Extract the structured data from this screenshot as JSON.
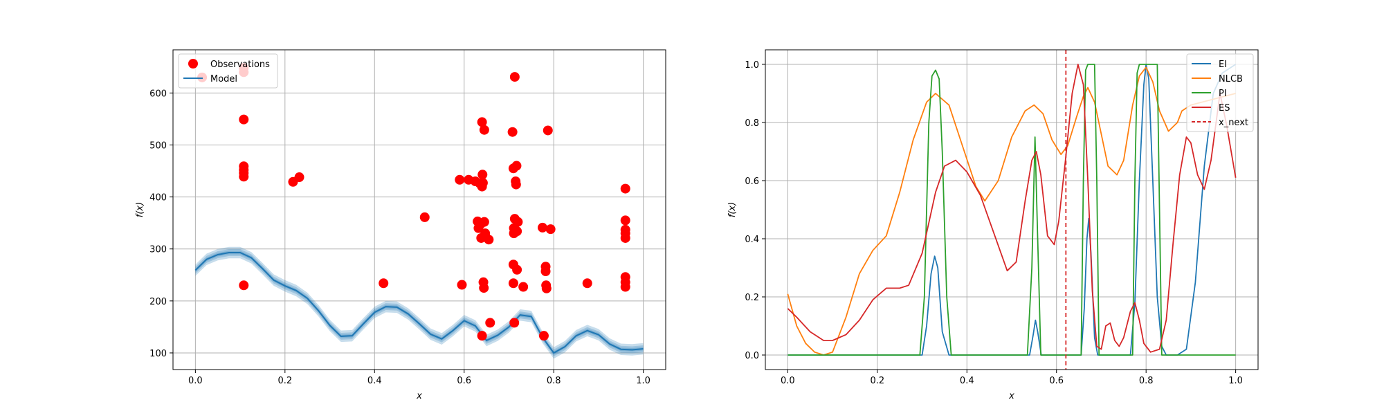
{
  "colors": {
    "observations": "#ff0000",
    "model": "#1f77b4",
    "ei": "#1f77b4",
    "nlcb": "#ff7f0e",
    "pi": "#2ca02c",
    "es": "#d62728",
    "x_next": "#d62728",
    "grid": "#b0b0b0"
  },
  "chart_data": [
    {
      "type": "scatter",
      "title": "",
      "xlabel": "x",
      "ylabel": "f(x)",
      "xlim": [
        -0.05,
        1.05
      ],
      "ylim": [
        68,
        683
      ],
      "xticks": [
        0.0,
        0.2,
        0.4,
        0.6,
        0.8,
        1.0
      ],
      "xtick_labels": [
        "0.0",
        "0.2",
        "0.4",
        "0.6",
        "0.8",
        "1.0"
      ],
      "yticks": [
        100,
        200,
        300,
        400,
        500,
        600
      ],
      "ytick_labels": [
        "100",
        "200",
        "300",
        "400",
        "500",
        "600"
      ],
      "grid": true,
      "legend_position": "top-left",
      "legend": [
        "Observations",
        "Model"
      ],
      "series": [
        {
          "name": "Observations",
          "type": "scatter",
          "points": [
            [
              0.015,
              630
            ],
            [
              0.108,
              648
            ],
            [
              0.108,
              640
            ],
            [
              0.108,
              549
            ],
            [
              0.108,
              459
            ],
            [
              0.108,
              452
            ],
            [
              0.108,
              446
            ],
            [
              0.108,
              439
            ],
            [
              0.108,
              230
            ],
            [
              0.218,
              429
            ],
            [
              0.232,
              438
            ],
            [
              0.42,
              234
            ],
            [
              0.512,
              361
            ],
            [
              0.59,
              433
            ],
            [
              0.595,
              231
            ],
            [
              0.61,
              433
            ],
            [
              0.625,
              430
            ],
            [
              0.63,
              353
            ],
            [
              0.632,
              340
            ],
            [
              0.635,
              426
            ],
            [
              0.637,
              348
            ],
            [
              0.638,
              321
            ],
            [
              0.64,
              544
            ],
            [
              0.64,
              420
            ],
            [
              0.641,
              443
            ],
            [
              0.642,
              427
            ],
            [
              0.643,
              236
            ],
            [
              0.644,
              225
            ],
            [
              0.645,
              529
            ],
            [
              0.645,
              352
            ],
            [
              0.647,
              330
            ],
            [
              0.648,
              323
            ],
            [
              0.655,
              318
            ],
            [
              0.658,
              158
            ],
            [
              0.64,
              133
            ],
            [
              0.708,
              525
            ],
            [
              0.71,
              455
            ],
            [
              0.71,
              270
            ],
            [
              0.71,
              234
            ],
            [
              0.711,
              340
            ],
            [
              0.711,
              330
            ],
            [
              0.712,
              158
            ],
            [
              0.713,
              631
            ],
            [
              0.713,
              358
            ],
            [
              0.715,
              430
            ],
            [
              0.716,
              424
            ],
            [
              0.717,
              460
            ],
            [
              0.718,
              334
            ],
            [
              0.718,
              260
            ],
            [
              0.72,
              352
            ],
            [
              0.732,
              227
            ],
            [
              0.775,
              341
            ],
            [
              0.778,
              133
            ],
            [
              0.782,
              266
            ],
            [
              0.782,
              257
            ],
            [
              0.783,
              230
            ],
            [
              0.784,
              224
            ],
            [
              0.787,
              528
            ],
            [
              0.793,
              338
            ],
            [
              0.875,
              234
            ],
            [
              0.96,
              416
            ],
            [
              0.96,
              355
            ],
            [
              0.96,
              337
            ],
            [
              0.96,
              330
            ],
            [
              0.96,
              321
            ],
            [
              0.96,
              246
            ],
            [
              0.96,
              236
            ],
            [
              0.96,
              227
            ]
          ]
        },
        {
          "name": "Model",
          "type": "line",
          "x": [
            0.0,
            0.025,
            0.05,
            0.075,
            0.1,
            0.125,
            0.15,
            0.175,
            0.2,
            0.225,
            0.25,
            0.275,
            0.3,
            0.325,
            0.35,
            0.375,
            0.4,
            0.425,
            0.45,
            0.475,
            0.5,
            0.525,
            0.55,
            0.575,
            0.6,
            0.625,
            0.65,
            0.675,
            0.7,
            0.725,
            0.75,
            0.775,
            0.8,
            0.825,
            0.85,
            0.875,
            0.9,
            0.925,
            0.95,
            0.975,
            1.0
          ],
          "y": [
            259,
            280,
            289,
            293,
            293,
            283,
            262,
            240,
            229,
            220,
            205,
            181,
            153,
            132,
            133,
            156,
            178,
            189,
            188,
            175,
            156,
            136,
            127,
            143,
            162,
            152,
            124,
            134,
            150,
            173,
            170,
            130,
            100,
            112,
            133,
            143,
            135,
            117,
            107,
            106,
            108
          ],
          "band": 11
        }
      ]
    },
    {
      "type": "line",
      "title": "",
      "xlabel": "x",
      "ylabel": "f(x)",
      "xlim": [
        -0.05,
        1.05
      ],
      "ylim": [
        -0.05,
        1.05
      ],
      "xticks": [
        0.0,
        0.2,
        0.4,
        0.6,
        0.8,
        1.0
      ],
      "xtick_labels": [
        "0.0",
        "0.2",
        "0.4",
        "0.6",
        "0.8",
        "1.0"
      ],
      "yticks": [
        0.0,
        0.2,
        0.4,
        0.6,
        0.8,
        1.0
      ],
      "ytick_labels": [
        "0.0",
        "0.2",
        "0.4",
        "0.6",
        "0.8",
        "1.0"
      ],
      "grid": true,
      "legend_position": "top-right",
      "legend": [
        "EI",
        "NLCB",
        "PI",
        "ES",
        "x_next"
      ],
      "x_next": 0.621,
      "series": [
        {
          "name": "EI",
          "x": [
            0.0,
            0.3,
            0.31,
            0.32,
            0.328,
            0.335,
            0.345,
            0.36,
            0.54,
            0.548,
            0.553,
            0.558,
            0.566,
            0.655,
            0.662,
            0.668,
            0.672,
            0.677,
            0.685,
            0.692,
            0.765,
            0.775,
            0.785,
            0.795,
            0.8,
            0.806,
            0.815,
            0.825,
            0.835,
            0.845,
            0.87,
            0.89,
            0.91,
            0.93,
            0.95,
            0.97,
            1.0
          ],
          "y": [
            0.0,
            0.0,
            0.1,
            0.28,
            0.34,
            0.3,
            0.08,
            0.0,
            0.0,
            0.07,
            0.12,
            0.08,
            0.0,
            0.0,
            0.16,
            0.4,
            0.47,
            0.35,
            0.06,
            0.0,
            0.0,
            0.18,
            0.6,
            0.93,
            1.0,
            0.95,
            0.6,
            0.2,
            0.03,
            0.0,
            0.0,
            0.02,
            0.25,
            0.65,
            0.9,
            0.97,
            1.0
          ]
        },
        {
          "name": "NLCB",
          "x": [
            0.0,
            0.02,
            0.04,
            0.06,
            0.08,
            0.1,
            0.13,
            0.16,
            0.19,
            0.22,
            0.25,
            0.28,
            0.31,
            0.33,
            0.36,
            0.39,
            0.42,
            0.44,
            0.47,
            0.5,
            0.53,
            0.55,
            0.57,
            0.59,
            0.61,
            0.625,
            0.645,
            0.66,
            0.67,
            0.685,
            0.7,
            0.715,
            0.735,
            0.75,
            0.77,
            0.785,
            0.8,
            0.815,
            0.83,
            0.85,
            0.87,
            0.88,
            0.9,
            1.0
          ],
          "y": [
            0.21,
            0.1,
            0.04,
            0.01,
            0.0,
            0.01,
            0.13,
            0.28,
            0.36,
            0.41,
            0.56,
            0.74,
            0.87,
            0.9,
            0.86,
            0.72,
            0.58,
            0.53,
            0.6,
            0.75,
            0.84,
            0.86,
            0.83,
            0.74,
            0.69,
            0.72,
            0.82,
            0.89,
            0.92,
            0.87,
            0.76,
            0.65,
            0.62,
            0.67,
            0.86,
            0.96,
            0.99,
            0.94,
            0.84,
            0.77,
            0.8,
            0.84,
            0.86,
            0.9
          ]
        },
        {
          "name": "PI",
          "x": [
            0.0,
            0.295,
            0.305,
            0.315,
            0.322,
            0.33,
            0.338,
            0.345,
            0.355,
            0.365,
            0.535,
            0.545,
            0.552,
            0.558,
            0.565,
            0.655,
            0.66,
            0.665,
            0.67,
            0.685,
            0.69,
            0.695,
            0.77,
            0.775,
            0.78,
            0.785,
            0.81,
            0.825,
            0.83,
            0.835,
            0.9,
            1.0
          ],
          "y": [
            0.0,
            0.0,
            0.2,
            0.8,
            0.96,
            0.98,
            0.95,
            0.7,
            0.2,
            0.0,
            0.0,
            0.3,
            0.75,
            0.4,
            0.0,
            0.0,
            0.6,
            0.98,
            1.0,
            1.0,
            0.6,
            0.0,
            0.0,
            0.6,
            0.97,
            1.0,
            1.0,
            1.0,
            0.5,
            0.0,
            0.0,
            0.0
          ]
        },
        {
          "name": "ES",
          "x": [
            0.0,
            0.02,
            0.05,
            0.08,
            0.1,
            0.13,
            0.16,
            0.19,
            0.22,
            0.25,
            0.27,
            0.3,
            0.33,
            0.35,
            0.375,
            0.4,
            0.43,
            0.46,
            0.49,
            0.51,
            0.53,
            0.545,
            0.555,
            0.565,
            0.58,
            0.595,
            0.605,
            0.62,
            0.635,
            0.648,
            0.66,
            0.67,
            0.68,
            0.69,
            0.7,
            0.71,
            0.72,
            0.73,
            0.74,
            0.75,
            0.765,
            0.775,
            0.785,
            0.795,
            0.81,
            0.83,
            0.845,
            0.86,
            0.875,
            0.89,
            0.9,
            0.915,
            0.93,
            0.945,
            0.965,
            0.98,
            1.0
          ],
          "y": [
            0.16,
            0.13,
            0.08,
            0.05,
            0.05,
            0.07,
            0.12,
            0.19,
            0.23,
            0.23,
            0.24,
            0.35,
            0.56,
            0.65,
            0.67,
            0.63,
            0.55,
            0.42,
            0.29,
            0.32,
            0.53,
            0.67,
            0.7,
            0.62,
            0.41,
            0.38,
            0.46,
            0.67,
            0.9,
            1.0,
            0.93,
            0.6,
            0.22,
            0.03,
            0.02,
            0.1,
            0.11,
            0.05,
            0.03,
            0.06,
            0.15,
            0.18,
            0.12,
            0.04,
            0.01,
            0.02,
            0.12,
            0.38,
            0.62,
            0.75,
            0.73,
            0.62,
            0.57,
            0.67,
            0.9,
            0.79,
            0.61
          ]
        }
      ]
    }
  ]
}
